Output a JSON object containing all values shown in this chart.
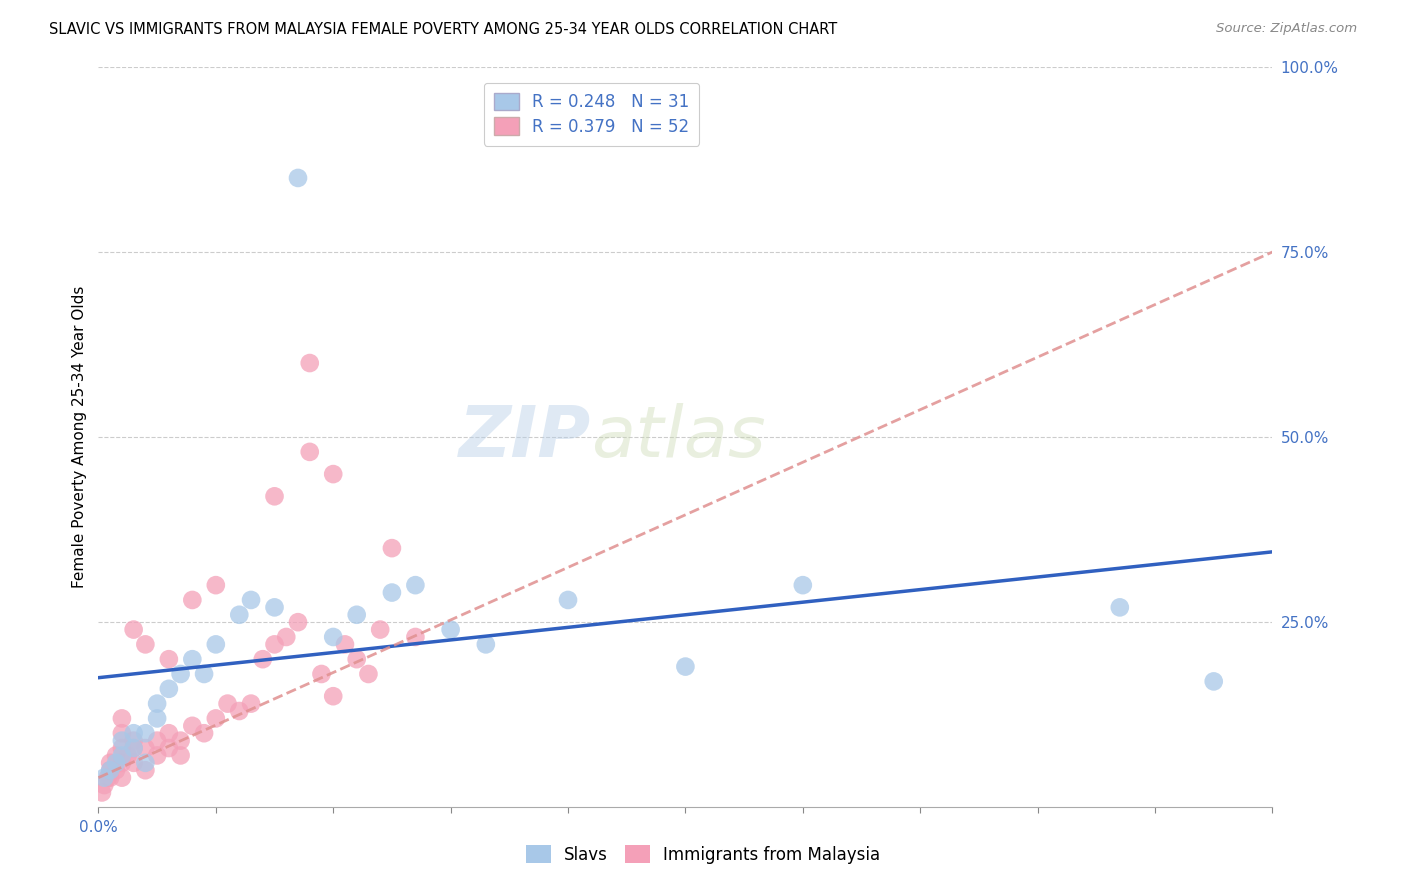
{
  "title": "SLAVIC VS IMMIGRANTS FROM MALAYSIA FEMALE POVERTY AMONG 25-34 YEAR OLDS CORRELATION CHART",
  "source": "Source: ZipAtlas.com",
  "ylabel_label": "Female Poverty Among 25-34 Year Olds",
  "right_ytick_labels": [
    "",
    "25.0%",
    "50.0%",
    "75.0%",
    "100.0%"
  ],
  "legend_slavic": "R = 0.248   N = 31",
  "legend_malaysia": "R = 0.379   N = 52",
  "watermark_zip": "ZIP",
  "watermark_atlas": "atlas",
  "slavic_color": "#a8c8e8",
  "malaysia_color": "#f4a0b8",
  "slavic_line_color": "#3060c0",
  "malaysia_line_color": "#e09090",
  "xlim": [
    0.0,
    0.1
  ],
  "ylim": [
    0.0,
    1.0
  ],
  "slavic_x": [
    0.0005,
    0.001,
    0.0015,
    0.002,
    0.002,
    0.003,
    0.003,
    0.004,
    0.004,
    0.005,
    0.005,
    0.006,
    0.007,
    0.008,
    0.009,
    0.01,
    0.012,
    0.013,
    0.015,
    0.017,
    0.02,
    0.022,
    0.025,
    0.027,
    0.03,
    0.033,
    0.04,
    0.05,
    0.06,
    0.087,
    0.095
  ],
  "slavic_y": [
    0.04,
    0.05,
    0.06,
    0.07,
    0.09,
    0.08,
    0.1,
    0.06,
    0.1,
    0.12,
    0.14,
    0.16,
    0.18,
    0.2,
    0.18,
    0.22,
    0.26,
    0.28,
    0.27,
    0.85,
    0.23,
    0.26,
    0.29,
    0.3,
    0.24,
    0.22,
    0.28,
    0.19,
    0.3,
    0.27,
    0.17
  ],
  "malaysia_x": [
    0.0003,
    0.0005,
    0.0008,
    0.001,
    0.001,
    0.001,
    0.0015,
    0.0015,
    0.002,
    0.002,
    0.002,
    0.0025,
    0.003,
    0.003,
    0.003,
    0.004,
    0.004,
    0.005,
    0.005,
    0.006,
    0.006,
    0.007,
    0.007,
    0.008,
    0.009,
    0.01,
    0.011,
    0.012,
    0.013,
    0.014,
    0.015,
    0.016,
    0.017,
    0.018,
    0.019,
    0.02,
    0.021,
    0.022,
    0.023,
    0.024,
    0.025,
    0.027,
    0.015,
    0.02,
    0.018,
    0.01,
    0.008,
    0.006,
    0.004,
    0.003,
    0.002,
    0.002
  ],
  "malaysia_y": [
    0.02,
    0.03,
    0.04,
    0.04,
    0.05,
    0.06,
    0.05,
    0.07,
    0.04,
    0.06,
    0.08,
    0.07,
    0.06,
    0.08,
    0.09,
    0.05,
    0.08,
    0.07,
    0.09,
    0.08,
    0.1,
    0.07,
    0.09,
    0.11,
    0.1,
    0.12,
    0.14,
    0.13,
    0.14,
    0.2,
    0.22,
    0.23,
    0.25,
    0.6,
    0.18,
    0.15,
    0.22,
    0.2,
    0.18,
    0.24,
    0.35,
    0.23,
    0.42,
    0.45,
    0.48,
    0.3,
    0.28,
    0.2,
    0.22,
    0.24,
    0.12,
    0.1
  ],
  "slavic_trend_x": [
    0.0,
    0.1
  ],
  "slavic_trend_y": [
    0.175,
    0.345
  ],
  "malaysia_trend_x": [
    0.0,
    0.1
  ],
  "malaysia_trend_y": [
    0.04,
    0.75
  ]
}
